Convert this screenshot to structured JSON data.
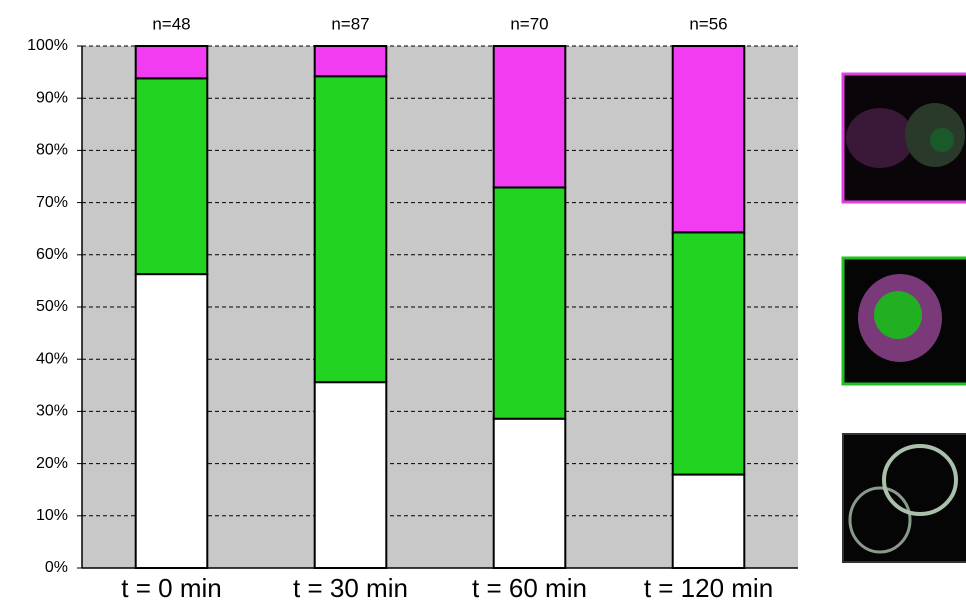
{
  "chart_data": {
    "type": "bar",
    "stacked": true,
    "categories": [
      "t = 0 min",
      "t = 30 min",
      "t = 60 min",
      "t = 120 min"
    ],
    "annotations": [
      "n=48",
      "n=87",
      "n=70",
      "n=56"
    ],
    "series": [
      {
        "color": "#ffffff",
        "values": [
          56.3,
          35.6,
          28.6,
          17.9
        ]
      },
      {
        "color": "#22d322",
        "values": [
          37.5,
          58.6,
          44.3,
          46.4
        ]
      },
      {
        "color": "#f23cf2",
        "values": [
          6.2,
          5.8,
          27.1,
          35.7
        ]
      }
    ],
    "ylim": [
      0,
      100
    ],
    "yticks": [
      {
        "value": 0,
        "label": "0%"
      },
      {
        "value": 10,
        "label": "10%"
      },
      {
        "value": 20,
        "label": "20%"
      },
      {
        "value": 30,
        "label": "30%"
      },
      {
        "value": 40,
        "label": "40%"
      },
      {
        "value": 50,
        "label": "50%"
      },
      {
        "value": 60,
        "label": "60%"
      },
      {
        "value": 70,
        "label": "70%"
      },
      {
        "value": 80,
        "label": "80%"
      },
      {
        "value": 90,
        "label": "90%"
      },
      {
        "value": 100,
        "label": "100%"
      }
    ],
    "grid": true,
    "plot_background": "#c8c8c8"
  }
}
